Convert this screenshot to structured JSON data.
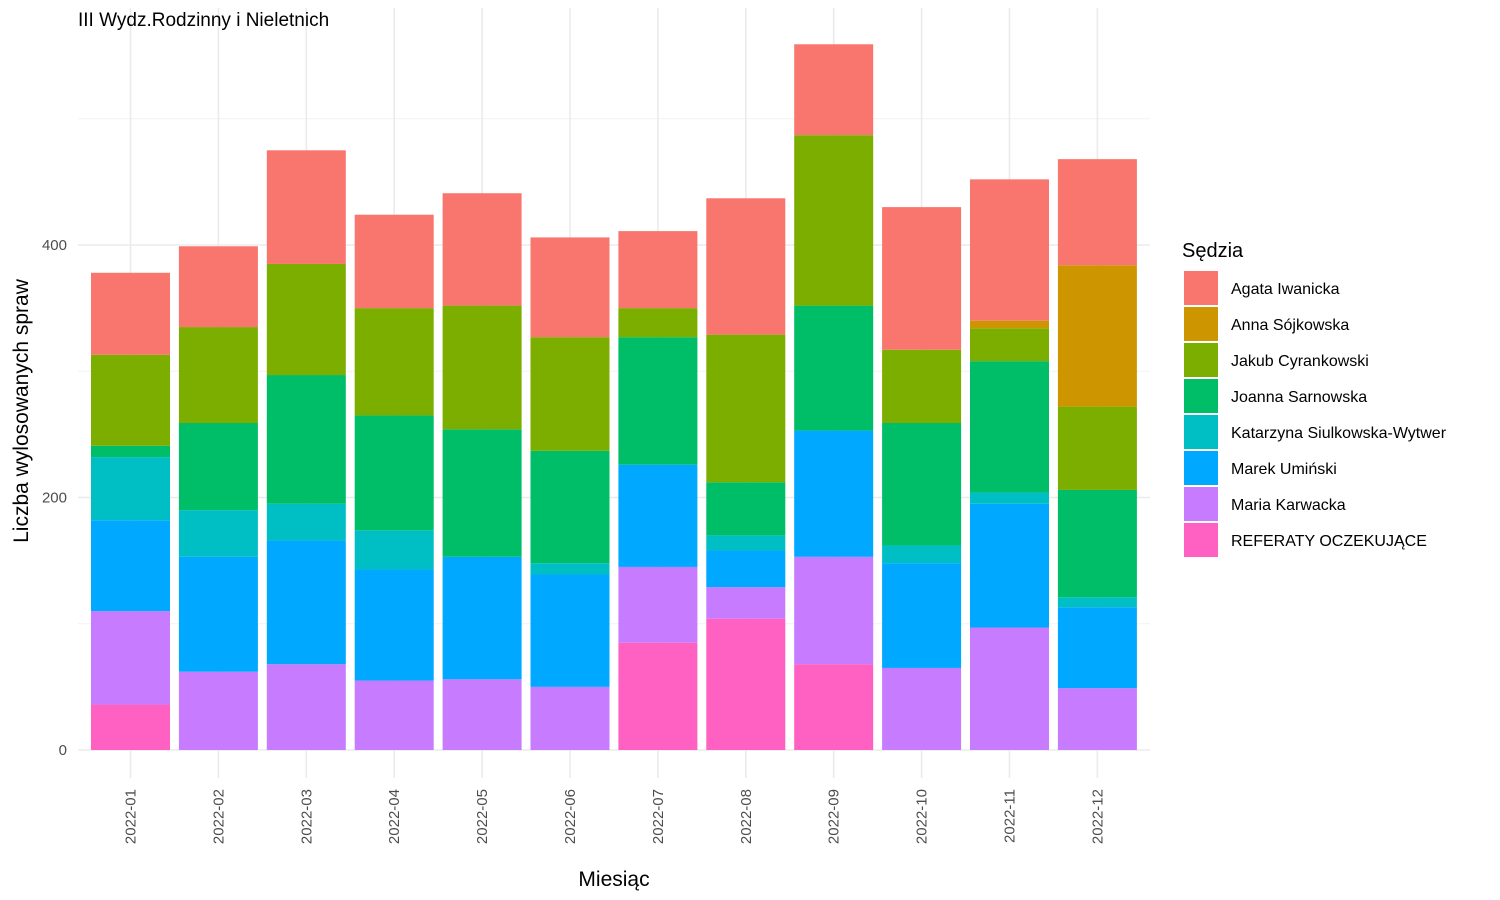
{
  "chart_data": {
    "type": "bar",
    "stacked": true,
    "title": "III Wydz.Rodzinny i Nieletnich",
    "xlabel": "Miesiąc",
    "ylabel": "Liczba wylosowanych spraw",
    "ylim": [
      0,
      580
    ],
    "yticks": [
      0,
      200,
      400
    ],
    "grid": true,
    "legend_title": "Sędzia",
    "legend_position": "right",
    "categories": [
      "2022-01",
      "2022-02",
      "2022-03",
      "2022-04",
      "2022-05",
      "2022-06",
      "2022-07",
      "2022-08",
      "2022-09",
      "2022-10",
      "2022-11",
      "2022-12"
    ],
    "series": [
      {
        "name": "REFERATY OCZEKUJĄCE",
        "color": "#FF61C3",
        "values": [
          36,
          0,
          0,
          0,
          0,
          0,
          85,
          104,
          68,
          0,
          0,
          0
        ]
      },
      {
        "name": "Maria Karwacka",
        "color": "#C77CFF",
        "values": [
          74,
          62,
          68,
          55,
          56,
          50,
          60,
          25,
          85,
          65,
          97,
          49
        ]
      },
      {
        "name": "Marek Umiński",
        "color": "#00A9FF",
        "values": [
          72,
          91,
          98,
          88,
          97,
          89,
          81,
          29,
          100,
          83,
          98,
          64
        ]
      },
      {
        "name": "Katarzyna Siulkowska-Wytwer",
        "color": "#00BFC4",
        "values": [
          50,
          37,
          29,
          31,
          0,
          9,
          0,
          12,
          0,
          14,
          9,
          8
        ]
      },
      {
        "name": "Joanna Sarnowska",
        "color": "#00BE67",
        "values": [
          9,
          69,
          102,
          91,
          101,
          89,
          101,
          42,
          99,
          97,
          104,
          85
        ]
      },
      {
        "name": "Jakub Cyrankowski",
        "color": "#7CAE00",
        "values": [
          72,
          76,
          88,
          85,
          98,
          90,
          23,
          117,
          135,
          58,
          26,
          66
        ]
      },
      {
        "name": "Anna Sójkowska",
        "color": "#CD9600",
        "values": [
          0,
          0,
          0,
          0,
          0,
          0,
          0,
          0,
          0,
          0,
          6,
          112
        ]
      },
      {
        "name": "Agata Iwanicka",
        "color": "#F8766D",
        "values": [
          65,
          64,
          90,
          74,
          89,
          79,
          61,
          108,
          72,
          113,
          112,
          84
        ]
      }
    ],
    "legend_order": [
      "Agata Iwanicka",
      "Anna Sójkowska",
      "Jakub Cyrankowski",
      "Joanna Sarnowska",
      "Katarzyna Siulkowska-Wytwer",
      "Marek Umiński",
      "Maria Karwacka",
      "REFERATY OCZEKUJĄCE"
    ]
  }
}
